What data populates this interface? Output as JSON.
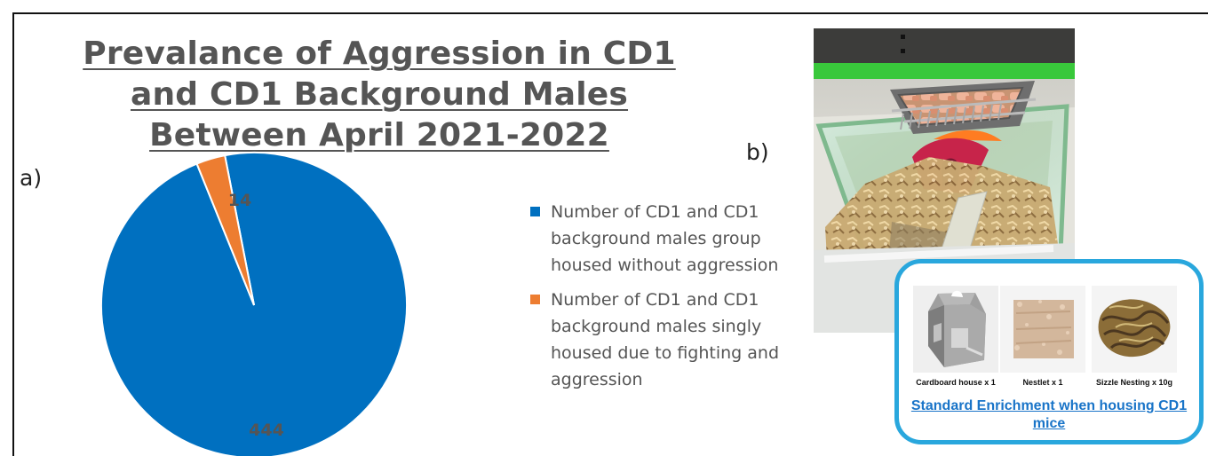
{
  "figure": {
    "panel_a_label": "a)",
    "panel_b_label": "b)"
  },
  "chart_data": {
    "type": "pie",
    "title": "Prevalance of Aggression in CD1 and CD1 Background Males Between April 2021-2022",
    "categories": [
      "Number of CD1 and CD1 background males group housed without aggression",
      "Number of CD1 and CD1 background males singly housed due to fighting and aggression"
    ],
    "values": [
      444,
      14
    ],
    "data_labels": [
      "444",
      "14"
    ],
    "colors": [
      "#0070C0",
      "#ED7D31"
    ],
    "legend_placement": "right"
  },
  "photo": {
    "caption": "Standard Enrichment when housing CD1 mice",
    "items": [
      {
        "label": "Cardboard house x 1",
        "icon": "cardboard-house-icon"
      },
      {
        "label": "Nestlet x 1",
        "icon": "nestlet-icon"
      },
      {
        "label": "Sizzle Nesting x 10g",
        "icon": "sizzle-nesting-icon"
      }
    ],
    "colors": {
      "border": "#29A7DD",
      "caption": "#1974C8"
    }
  }
}
